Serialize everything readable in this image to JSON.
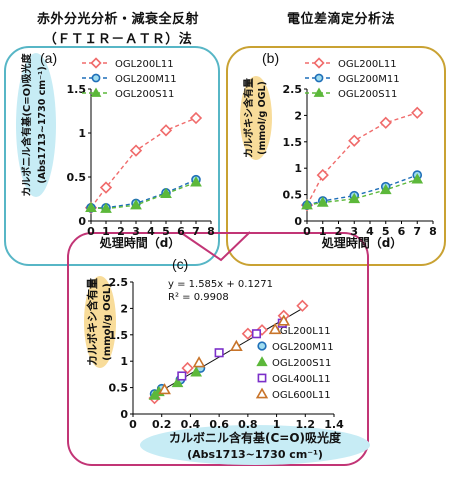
{
  "headers": {
    "left_line1": "赤外分光分析・減衰全反射",
    "left_line2": "（ＦＴＩＲ－ＡＴＲ）法",
    "right": "電位差滴定分析法"
  },
  "colors": {
    "L11": "#f06b6b",
    "M11": "#1f6fb8",
    "S11": "#5cb83a",
    "L400": "#7b2fc9",
    "L600": "#c8742a",
    "frame_a": "#57b6c6",
    "frame_b": "#c9a233",
    "frame_c": "#c23576",
    "bubble_blue": "#c7ecf5",
    "bubble_yellow": "#f8dc9a"
  },
  "chart_data": [
    {
      "type": "line",
      "panel_label": "(a)",
      "ylabel": "カルボニル含有基(C=O)吸光度",
      "ylabel_sub": "(Abs1713~1730 cm⁻¹)",
      "xlabel": "処理時間（d）",
      "x_ticks": [
        "0",
        "1",
        "2",
        "3",
        "4",
        "5",
        "6",
        "7",
        "8"
      ],
      "y_ticks": [
        "0",
        "0.5",
        "1",
        "1.5"
      ],
      "xlim": [
        0,
        8
      ],
      "ylim": [
        0,
        1.5
      ],
      "x": [
        0,
        1,
        3,
        5,
        7
      ],
      "series": [
        {
          "name": "OGL200L11",
          "marker": "diamond",
          "values": [
            0.15,
            0.38,
            0.8,
            1.03,
            1.17
          ]
        },
        {
          "name": "OGL200M11",
          "marker": "circle",
          "values": [
            0.15,
            0.15,
            0.2,
            0.32,
            0.47
          ]
        },
        {
          "name": "OGL200S11",
          "marker": "triangle",
          "values": [
            0.15,
            0.14,
            0.18,
            0.31,
            0.44
          ]
        }
      ]
    },
    {
      "type": "line",
      "panel_label": "(b)",
      "ylabel": "カルボキシ含有量",
      "ylabel_sub": "(mmol/g OGL)",
      "xlabel": "処理時間（d）",
      "x_ticks": [
        "0",
        "1",
        "2",
        "3",
        "4",
        "5",
        "6",
        "7",
        "8"
      ],
      "y_ticks": [
        "0",
        "0.5",
        "1",
        "1.5",
        "2",
        "2.5"
      ],
      "xlim": [
        0,
        8
      ],
      "ylim": [
        0,
        2.5
      ],
      "x": [
        0,
        1,
        3,
        5,
        7
      ],
      "series": [
        {
          "name": "OGL200L11",
          "marker": "diamond",
          "values": [
            0.3,
            0.87,
            1.52,
            1.86,
            2.05
          ]
        },
        {
          "name": "OGL200M11",
          "marker": "circle",
          "values": [
            0.3,
            0.38,
            0.48,
            0.65,
            0.87
          ]
        },
        {
          "name": "OGL200S11",
          "marker": "triangle",
          "values": [
            0.3,
            0.35,
            0.42,
            0.59,
            0.79
          ]
        }
      ]
    },
    {
      "type": "scatter",
      "panel_label": "(c)",
      "ylabel": "カルボキシ含有量",
      "ylabel_sub": "(mmol/g OGL)",
      "xlabel": "カルボニル含有基(C=O)吸光度",
      "xlabel_sub": "(Abs1713~1730 cm⁻¹)",
      "equation": "y = 1.585x + 0.1271",
      "r2": "R² = 0.9908",
      "x_ticks": [
        "0",
        "0.2",
        "0.4",
        "0.6",
        "0.8",
        "1",
        "1.2",
        "1.4"
      ],
      "y_ticks": [
        "0",
        "0.5",
        "1",
        "1.5",
        "2",
        "2.5"
      ],
      "xlim": [
        0,
        1.4
      ],
      "ylim": [
        0,
        2.5
      ],
      "fit": {
        "slope": 1.585,
        "intercept": 0.1271,
        "x_range": [
          0.12,
          1.2
        ]
      },
      "series": [
        {
          "name": "OGL200L11",
          "marker": "diamond",
          "points": [
            [
              0.15,
              0.3
            ],
            [
              0.38,
              0.87
            ],
            [
              0.8,
              1.52
            ],
            [
              1.05,
              1.86
            ],
            [
              1.18,
              2.05
            ]
          ]
        },
        {
          "name": "OGL200M11",
          "marker": "circle",
          "points": [
            [
              0.15,
              0.38
            ],
            [
              0.2,
              0.48
            ],
            [
              0.33,
              0.65
            ],
            [
              0.47,
              0.87
            ]
          ]
        },
        {
          "name": "OGL200S11",
          "marker": "triangle",
          "points": [
            [
              0.15,
              0.35
            ],
            [
              0.18,
              0.42
            ],
            [
              0.31,
              0.59
            ],
            [
              0.44,
              0.79
            ]
          ]
        },
        {
          "name": "OGL400L11",
          "marker": "square",
          "points": [
            [
              0.34,
              0.72
            ],
            [
              0.6,
              1.16
            ],
            [
              0.86,
              1.52
            ],
            [
              1.04,
              1.72
            ]
          ]
        },
        {
          "name": "OGL600L11",
          "marker": "triangle-open",
          "points": [
            [
              0.22,
              0.46
            ],
            [
              0.46,
              0.97
            ],
            [
              0.72,
              1.28
            ],
            [
              0.99,
              1.6
            ],
            [
              1.05,
              1.76
            ]
          ]
        }
      ]
    }
  ]
}
